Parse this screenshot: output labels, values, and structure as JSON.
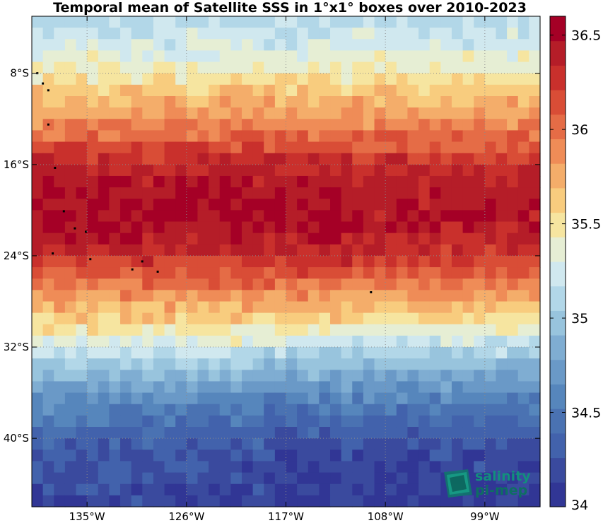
{
  "title": "Temporal mean of Satellite SSS in 1°x1° boxes over 2010-2023",
  "colors": [
    "#313695",
    "#3a4a9e",
    "#4262ac",
    "#4a72b2",
    "#5686bc",
    "#6a99c7",
    "#7fadd2",
    "#98c4dd",
    "#b2d7e8",
    "#d0e8ef",
    "#e6eed4",
    "#f6e5a0",
    "#f8cc7e",
    "#f4ad6a",
    "#ef8c57",
    "#e56c46",
    "#d94d36",
    "#c9302c",
    "#b51d28",
    "#a50026"
  ],
  "chart_data": {
    "type": "heatmap",
    "title": "Temporal mean of Satellite SSS in 1°x1° boxes over 2010-2023",
    "x_range": [
      -140,
      -94
    ],
    "y_range": [
      -46,
      -3
    ],
    "x_ticks": [
      {
        "value": -135,
        "label": "135°W"
      },
      {
        "value": -126,
        "label": "126°W"
      },
      {
        "value": -117,
        "label": "117°W"
      },
      {
        "value": -108,
        "label": "108°W"
      },
      {
        "value": -99,
        "label": "99°W"
      }
    ],
    "y_ticks": [
      {
        "value": -8,
        "label": "8°S"
      },
      {
        "value": -16,
        "label": "16°S"
      },
      {
        "value": -24,
        "label": "24°S"
      },
      {
        "value": -32,
        "label": "32°S"
      },
      {
        "value": -40,
        "label": "40°S"
      }
    ],
    "colorbar": {
      "min": 34.0,
      "max": 36.6,
      "ticks": [
        34,
        34.5,
        35,
        35.5,
        36,
        36.5
      ],
      "tick_labels": [
        "34",
        "34.5",
        "35",
        "35.5",
        "36",
        "36.5"
      ]
    },
    "grid": true,
    "latitude_profile_sss": [
      {
        "lat": -3.5,
        "sss": 35.15
      },
      {
        "lat": -6,
        "sss": 35.3
      },
      {
        "lat": -8,
        "sss": 35.45
      },
      {
        "lat": -10,
        "sss": 35.7
      },
      {
        "lat": -12,
        "sss": 35.85
      },
      {
        "lat": -14,
        "sss": 36.1
      },
      {
        "lat": -16,
        "sss": 36.35
      },
      {
        "lat": -18,
        "sss": 36.45
      },
      {
        "lat": -20,
        "sss": 36.5
      },
      {
        "lat": -22,
        "sss": 36.45
      },
      {
        "lat": -24,
        "sss": 36.3
      },
      {
        "lat": -26,
        "sss": 36.05
      },
      {
        "lat": -28,
        "sss": 35.8
      },
      {
        "lat": -30,
        "sss": 35.55
      },
      {
        "lat": -32,
        "sss": 35.25
      },
      {
        "lat": -34,
        "sss": 34.95
      },
      {
        "lat": -36,
        "sss": 34.7
      },
      {
        "lat": -38,
        "sss": 34.5
      },
      {
        "lat": -40,
        "sss": 34.35
      },
      {
        "lat": -42,
        "sss": 34.25
      },
      {
        "lat": -44,
        "sss": 34.2
      },
      {
        "lat": -46,
        "sss": 34.15
      }
    ]
  },
  "logo": {
    "line1": "salinity",
    "line2": "pi-mep"
  }
}
